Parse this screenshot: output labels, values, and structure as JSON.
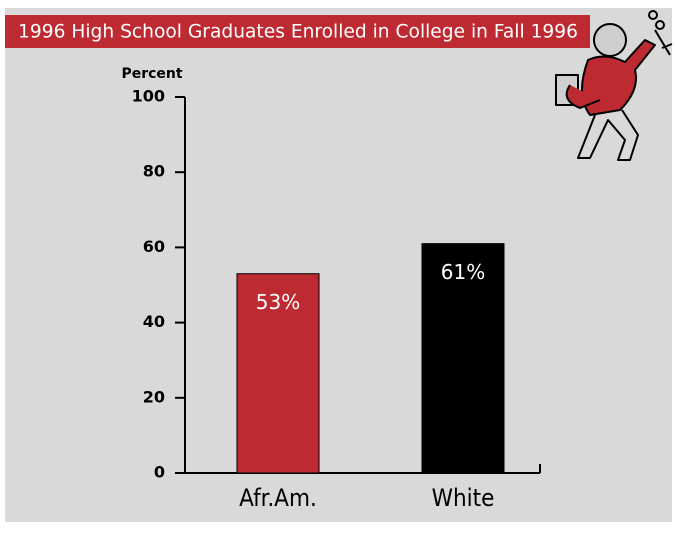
{
  "chart_data": {
    "type": "bar",
    "title": "1996 High School Graduates Enrolled in College in Fall 1996",
    "y_label": "Percent",
    "categories": [
      "Afr.Am.",
      "White"
    ],
    "values": [
      53,
      61
    ],
    "value_labels": [
      "53%",
      "61%"
    ],
    "colors": [
      "#be2a32",
      "#000000"
    ],
    "ylim": [
      0,
      100
    ],
    "yticks": [
      0,
      20,
      40,
      60,
      80,
      100
    ],
    "grid": false
  }
}
